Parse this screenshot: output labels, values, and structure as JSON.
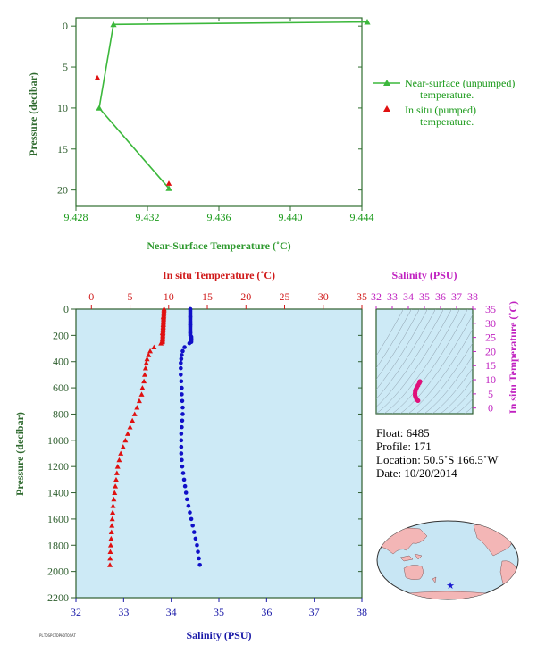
{
  "chart_data": [
    {
      "type": "line",
      "xlabel": "Near-Surface Temperature (˚C)",
      "ylabel": "Pressure (decibar)",
      "xlim": [
        9.428,
        9.444
      ],
      "ylim": [
        22,
        -1
      ],
      "xticks": [
        "9.428",
        "9.432",
        "9.436",
        "9.440",
        "9.444"
      ],
      "yticks": [
        "0",
        "5",
        "10",
        "15",
        "20"
      ],
      "legend_placement": "right",
      "series": [
        {
          "name": "Near-surface (unpumped) temperature.",
          "legend_lines": [
            "Near-surface (unpumped)",
            "temperature."
          ],
          "marker": "triangle",
          "color": "#3cb83c",
          "points": [
            [
              9.4443,
              -0.5
            ],
            [
              9.4301,
              -0.2
            ],
            [
              9.4293,
              10.0
            ],
            [
              9.4332,
              19.8
            ]
          ]
        },
        {
          "name": "In situ (pumped) temperature.",
          "legend_lines": [
            "In situ (pumped)",
            "temperature."
          ],
          "marker": "triangle",
          "color": "#e01010",
          "points": [
            [
              9.4292,
              6.3
            ],
            [
              9.4332,
              19.2
            ]
          ]
        }
      ]
    },
    {
      "type": "line",
      "title_top": "In situ Temperature (˚C)",
      "xlabel": "Salinity (PSU)",
      "ylabel": "Pressure (decibar)",
      "temp_lim": [
        -2,
        35
      ],
      "sal_lim": [
        32,
        38
      ],
      "ylim": [
        2200,
        0
      ],
      "temp_ticks": [
        "0",
        "5",
        "10",
        "15",
        "20",
        "25",
        "30",
        "35"
      ],
      "sal_ticks": [
        "32",
        "33",
        "34",
        "35",
        "36",
        "37",
        "38"
      ],
      "pressure_ticks": [
        "0",
        "200",
        "400",
        "600",
        "800",
        "1000",
        "1200",
        "1400",
        "1600",
        "1800",
        "2000",
        "2200"
      ],
      "temperature_series": {
        "color": "#e01010",
        "marker": "triangle",
        "points": [
          [
            9.4,
            0
          ],
          [
            9.3,
            60
          ],
          [
            9.3,
            120
          ],
          [
            9.2,
            180
          ],
          [
            9.2,
            230
          ],
          [
            9.0,
            260
          ],
          [
            8.1,
            290
          ],
          [
            7.6,
            320
          ],
          [
            7.4,
            350
          ],
          [
            7.2,
            380
          ],
          [
            7.1,
            410
          ],
          [
            7.0,
            450
          ],
          [
            6.9,
            500
          ],
          [
            6.8,
            550
          ],
          [
            6.6,
            600
          ],
          [
            6.5,
            650
          ],
          [
            6.2,
            700
          ],
          [
            5.9,
            750
          ],
          [
            5.6,
            800
          ],
          [
            5.3,
            850
          ],
          [
            5.0,
            900
          ],
          [
            4.7,
            950
          ],
          [
            4.4,
            1000
          ],
          [
            4.1,
            1050
          ],
          [
            3.8,
            1100
          ],
          [
            3.6,
            1150
          ],
          [
            3.4,
            1200
          ],
          [
            3.3,
            1250
          ],
          [
            3.2,
            1300
          ],
          [
            3.1,
            1350
          ],
          [
            3.0,
            1400
          ],
          [
            2.9,
            1450
          ],
          [
            2.8,
            1500
          ],
          [
            2.75,
            1550
          ],
          [
            2.7,
            1600
          ],
          [
            2.65,
            1650
          ],
          [
            2.6,
            1700
          ],
          [
            2.55,
            1750
          ],
          [
            2.5,
            1800
          ],
          [
            2.45,
            1850
          ],
          [
            2.42,
            1900
          ],
          [
            2.4,
            1950
          ]
        ]
      },
      "salinity_series": {
        "color": "#1010c8",
        "marker": "circle",
        "points": [
          [
            34.4,
            0
          ],
          [
            34.4,
            60
          ],
          [
            34.4,
            120
          ],
          [
            34.4,
            180
          ],
          [
            34.42,
            230
          ],
          [
            34.38,
            260
          ],
          [
            34.28,
            290
          ],
          [
            34.24,
            320
          ],
          [
            34.22,
            350
          ],
          [
            34.21,
            380
          ],
          [
            34.2,
            410
          ],
          [
            34.2,
            450
          ],
          [
            34.2,
            500
          ],
          [
            34.21,
            550
          ],
          [
            34.22,
            600
          ],
          [
            34.22,
            650
          ],
          [
            34.23,
            700
          ],
          [
            34.24,
            750
          ],
          [
            34.24,
            800
          ],
          [
            34.23,
            850
          ],
          [
            34.22,
            900
          ],
          [
            34.21,
            950
          ],
          [
            34.21,
            1000
          ],
          [
            34.21,
            1050
          ],
          [
            34.21,
            1100
          ],
          [
            34.22,
            1150
          ],
          [
            34.23,
            1200
          ],
          [
            34.25,
            1250
          ],
          [
            34.27,
            1300
          ],
          [
            34.29,
            1350
          ],
          [
            34.31,
            1400
          ],
          [
            34.33,
            1450
          ],
          [
            34.36,
            1500
          ],
          [
            34.39,
            1550
          ],
          [
            34.42,
            1600
          ],
          [
            34.45,
            1650
          ],
          [
            34.48,
            1700
          ],
          [
            34.51,
            1750
          ],
          [
            34.54,
            1800
          ],
          [
            34.56,
            1850
          ],
          [
            34.58,
            1900
          ],
          [
            34.6,
            1950
          ]
        ]
      }
    },
    {
      "type": "scatter",
      "title": "Salinity (PSU)",
      "ylabel": "In situ Temperature (˚C)",
      "xlim": [
        32,
        38
      ],
      "ylim": [
        -2,
        35
      ],
      "xticks": [
        "32",
        "33",
        "34",
        "35",
        "36",
        "37",
        "38"
      ],
      "yticks": [
        "0",
        "5",
        "10",
        "15",
        "20",
        "25",
        "30",
        "35"
      ],
      "marker_color": "#e0107a",
      "points": [
        [
          34.72,
          9.4
        ],
        [
          34.68,
          8.8
        ],
        [
          34.6,
          8.0
        ],
        [
          34.52,
          7.2
        ],
        [
          34.46,
          6.5
        ],
        [
          34.43,
          5.9
        ],
        [
          34.42,
          5.2
        ],
        [
          34.42,
          4.5
        ],
        [
          34.45,
          3.9
        ],
        [
          34.5,
          3.3
        ],
        [
          34.55,
          2.9
        ],
        [
          34.6,
          2.6
        ]
      ]
    }
  ],
  "float_info": {
    "float": "Float:  6485",
    "profile": "Profile:  171",
    "location": "Location:  50.5˚S  166.5˚W",
    "date": "Date:  10/20/2014"
  },
  "map": {
    "land_color": "#f3b6b6",
    "ocean_color": "#c8e6f4",
    "marker_icon": "star-icon",
    "marker_color": "#1a1ad0"
  },
  "footer_stamp": "PLTDSPCTDPHOTOSAT"
}
